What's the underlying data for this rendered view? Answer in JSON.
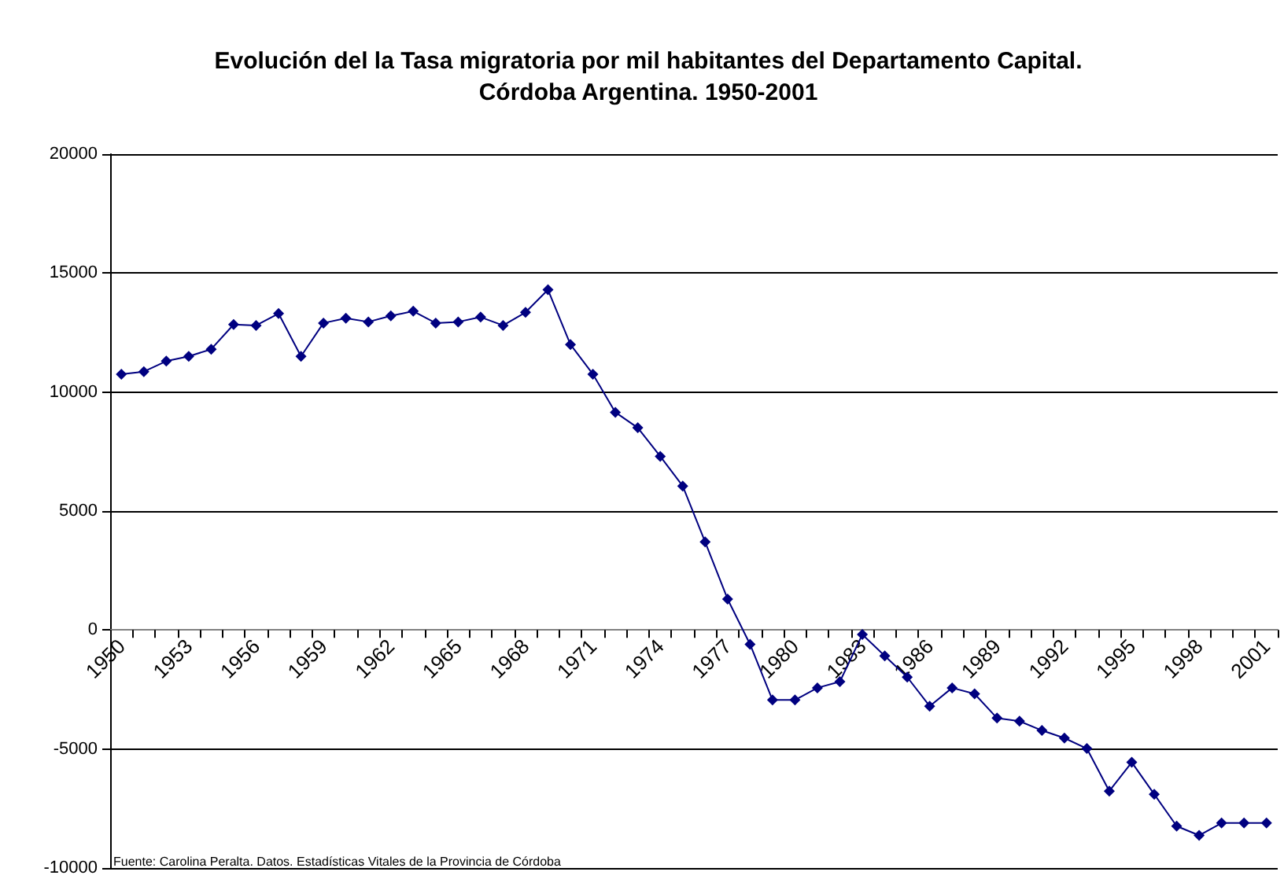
{
  "chart_data": {
    "type": "line",
    "title": "Evolución del la Tasa migratoria por mil habitantes del Departamento Capital.\nCórdoba Argentina. 1950-2001",
    "categories": [
      "1950",
      null,
      null,
      "1953",
      null,
      null,
      "1956",
      null,
      null,
      "1959",
      null,
      null,
      "1962",
      null,
      null,
      "1965",
      null,
      null,
      "1968",
      null,
      null,
      "1971",
      null,
      null,
      "1974",
      null,
      null,
      "1977",
      null,
      null,
      "1980",
      null,
      null,
      "1983",
      null,
      null,
      "1986",
      null,
      null,
      "1989",
      null,
      null,
      "1992",
      null,
      null,
      "1995",
      null,
      null,
      "1998",
      null,
      null,
      "2001"
    ],
    "series": [
      {
        "color": "#000080",
        "values": [
          10750,
          10860,
          11300,
          11500,
          11800,
          12840,
          12800,
          13300,
          11500,
          12900,
          13100,
          12950,
          13200,
          13400,
          12900,
          12950,
          13150,
          12800,
          13350,
          14300,
          12000,
          10750,
          9150,
          8500,
          7300,
          6050,
          3700,
          1300,
          -600,
          -2940,
          -2940,
          -2430,
          -2170,
          -190,
          -1090,
          -1980,
          -3200,
          -2430,
          -2680,
          -3700,
          -3830,
          -4220,
          -4540,
          -4980,
          -6770,
          -5560,
          -6900,
          -8240,
          -8630,
          -8110,
          -8110,
          -8110
        ]
      }
    ],
    "ylim": [
      -10000,
      20000
    ],
    "yticks": [
      -10000,
      -5000,
      0,
      5000,
      10000,
      15000,
      20000
    ],
    "grid": "y",
    "marker": "diamond",
    "line_style": "solid",
    "annotations": [
      "Fuente: Carolina Peralta. Datos. Estadísticas Vitales de la Provincia de Córdoba"
    ]
  }
}
